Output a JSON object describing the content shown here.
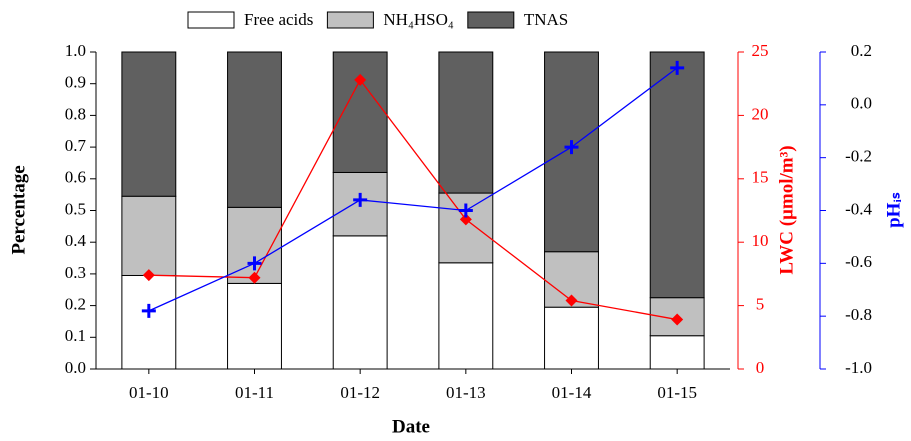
{
  "chart_data": {
    "type": "bar",
    "stacked": true,
    "x_label": "Date",
    "y_label": "Percentage",
    "y2_label": "LWC (μmol/m³)",
    "y3_label": "pHᵢₛ",
    "categories": [
      "01-10",
      "01-11",
      "01-12",
      "01-13",
      "01-14",
      "01-15"
    ],
    "series": [
      {
        "name": "Free acids",
        "color": "#ffffff",
        "values": [
          0.295,
          0.27,
          0.42,
          0.335,
          0.195,
          0.105
        ]
      },
      {
        "name": "NH₄HSO₄",
        "color": "#c0c0c0",
        "values": [
          0.25,
          0.24,
          0.2,
          0.22,
          0.175,
          0.12
        ]
      },
      {
        "name": "TNAS",
        "color": "#606060",
        "values": [
          0.455,
          0.49,
          0.38,
          0.445,
          0.63,
          0.775
        ]
      },
      {
        "type": "line",
        "axis": "y2",
        "color": "#ff0000",
        "marker": "diamond",
        "values": [
          7.4,
          7.2,
          22.8,
          11.8,
          5.4,
          3.9
        ]
      },
      {
        "type": "line",
        "axis": "y3",
        "color": "#0000ff",
        "marker": "plus",
        "values": [
          -0.78,
          -0.6,
          -0.36,
          -0.4,
          -0.16,
          0.14
        ]
      }
    ],
    "ylim": [
      0,
      1
    ],
    "yticks": [
      {
        "value": 0,
        "label": "0.0"
      },
      0.1,
      0.2,
      0.3,
      0.4,
      0.5,
      0.6,
      0.7,
      0.8,
      0.9,
      {
        "value": 1,
        "label": "1.0"
      }
    ],
    "y2lim": [
      0,
      25
    ],
    "y2ticks": [
      0,
      5,
      10,
      15,
      20,
      25
    ],
    "y2color": "#ff0000",
    "y3lim": [
      -1,
      0.2
    ],
    "y3ticks": [
      {
        "value": -1,
        "label": "-1.0"
      },
      -0.8,
      -0.6,
      -0.4,
      -0.2,
      {
        "value": 0,
        "label": "0.0"
      },
      0.2
    ],
    "y3color": "#0000ff",
    "legend": "top"
  }
}
